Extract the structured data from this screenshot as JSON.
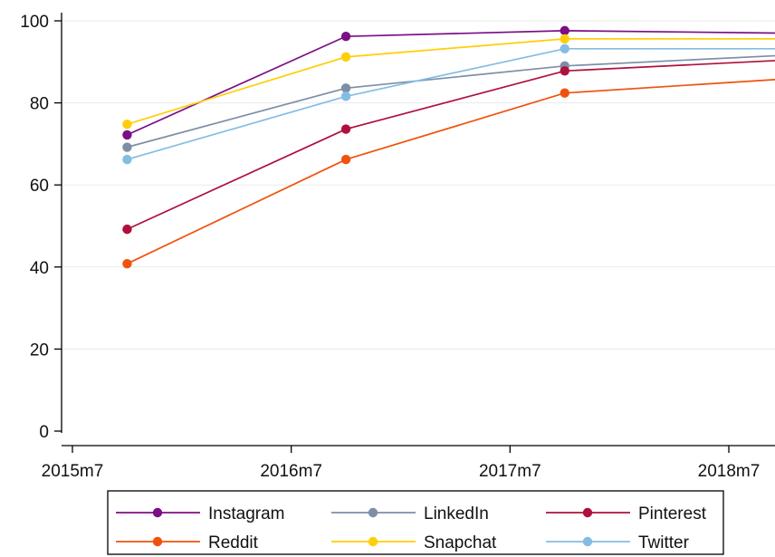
{
  "chart_data": {
    "type": "line",
    "x": [
      "2015m10",
      "2016m10",
      "2017m10",
      "2018m10"
    ],
    "x_tick_labels": [
      "2015m7",
      "2016m7",
      "2017m7",
      "2018m7"
    ],
    "y_ticks": [
      0,
      20,
      40,
      60,
      80,
      100
    ],
    "ylim": [
      -2,
      102
    ],
    "grid": true,
    "legend_position": "bottom",
    "series": [
      {
        "name": "Instagram",
        "color": "#7b0f86",
        "values": [
          72.2,
          96.2,
          97.6,
          97.0
        ]
      },
      {
        "name": "LinkedIn",
        "color": "#7d8fa6",
        "values": [
          69.2,
          83.6,
          89.0,
          91.6
        ]
      },
      {
        "name": "Pinterest",
        "color": "#b0103c",
        "values": [
          49.2,
          73.6,
          87.8,
          90.4
        ]
      },
      {
        "name": "Reddit",
        "color": "#f0520e",
        "values": [
          40.8,
          66.2,
          82.4,
          85.8
        ]
      },
      {
        "name": "Snapchat",
        "color": "#ffce0a",
        "values": [
          74.8,
          91.2,
          95.6,
          95.6
        ]
      },
      {
        "name": "Twitter",
        "color": "#84bde3",
        "values": [
          66.2,
          81.6,
          93.2,
          93.2
        ]
      }
    ]
  }
}
